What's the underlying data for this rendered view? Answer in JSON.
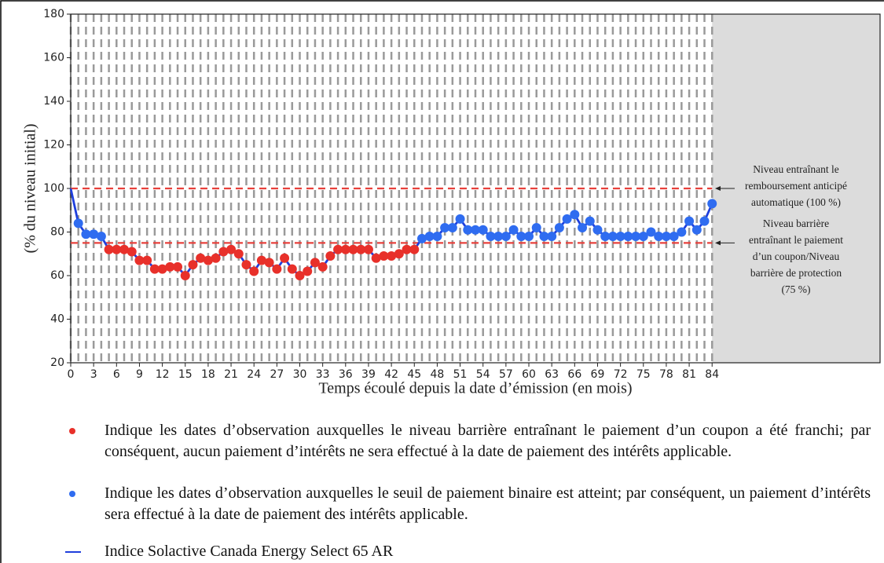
{
  "chart_data": {
    "type": "line",
    "x_label": "Temps écoulé depuis la date d’émission (en mois)",
    "y_label": "(% du niveau initial)",
    "x": [
      0,
      1,
      2,
      3,
      4,
      5,
      6,
      7,
      8,
      9,
      10,
      11,
      12,
      13,
      14,
      15,
      16,
      17,
      18,
      19,
      20,
      21,
      22,
      23,
      24,
      25,
      26,
      27,
      28,
      29,
      30,
      31,
      32,
      33,
      34,
      35,
      36,
      37,
      38,
      39,
      40,
      41,
      42,
      43,
      44,
      45,
      46,
      47,
      48,
      49,
      50,
      51,
      52,
      53,
      54,
      55,
      56,
      57,
      58,
      59,
      60,
      61,
      62,
      63,
      64,
      65,
      66,
      67,
      68,
      69,
      70,
      71,
      72,
      73,
      74,
      75,
      76,
      77,
      78,
      79,
      80,
      81,
      82,
      83,
      84
    ],
    "series": [
      {
        "name": "Indice Solactive Canada Energy Select 65 AR",
        "color": "#1f3fdc",
        "values": [
          100,
          84,
          79,
          79,
          78,
          72,
          72,
          72,
          71,
          67,
          67,
          63,
          63,
          64,
          64,
          60,
          65,
          68,
          67,
          68,
          71,
          72,
          70,
          65,
          62,
          67,
          66,
          63,
          68,
          63,
          60,
          62,
          66,
          64,
          69,
          72,
          72,
          72,
          72,
          72,
          68,
          69,
          69,
          70,
          72,
          72,
          77,
          78,
          78,
          82,
          82,
          86,
          81,
          81,
          81,
          78,
          78,
          78,
          81,
          78,
          78,
          82,
          78,
          78,
          82,
          86,
          88,
          82,
          85,
          81,
          78,
          78,
          78,
          78,
          78,
          78,
          80,
          78,
          78,
          78,
          80,
          85,
          81,
          85,
          93
        ]
      }
    ],
    "xlim": [
      0,
      106
    ],
    "ylim": [
      20,
      180
    ],
    "xticks": [
      0,
      3,
      6,
      9,
      12,
      15,
      18,
      21,
      24,
      27,
      30,
      33,
      36,
      39,
      42,
      45,
      48,
      51,
      54,
      57,
      60,
      63,
      66,
      69,
      72,
      75,
      78,
      81,
      84
    ],
    "yticks": [
      20,
      40,
      60,
      80,
      100,
      120,
      140,
      160,
      180
    ],
    "shaded_from": 84,
    "reference_lines": [
      {
        "value": 100,
        "color": "#e8413c",
        "label": [
          "Niveau entraînant le",
          "remboursement anticipé",
          "automatique (100 %)"
        ]
      },
      {
        "value": 75,
        "color": "#e8413c",
        "label": [
          "Niveau barrière",
          "entraînant le paiement",
          "d’un coupon/Niveau",
          "barrière de protection",
          "(75 %)"
        ]
      }
    ],
    "marker_notes": [
      {
        "color": "#e8302a",
        "text": "Indique les dates d’observation auxquelles le niveau barrière entraînant le paiement d’un coupon a été franchi; par conséquent, aucun paiement d’intérêts ne sera effectué à la date de paiement des intérêts applicable."
      },
      {
        "color": "#2f6cf0",
        "text": "Indique les dates d’observation auxquelles le seuil de paiement binaire est atteint; par conséquent, un paiement d’intérêts sera effectué à la date de paiement des intérêts applicable."
      }
    ]
  }
}
